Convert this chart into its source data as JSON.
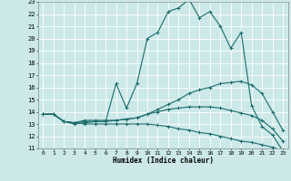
{
  "title": "",
  "xlabel": "Humidex (Indice chaleur)",
  "bg_color": "#cce8e8",
  "grid_color": "#ffffff",
  "line_color": "#1a6b6b",
  "xlim_min": 0,
  "xlim_max": 23,
  "ylim_min": 11,
  "ylim_max": 23,
  "xticks": [
    0,
    1,
    2,
    3,
    4,
    5,
    6,
    7,
    8,
    9,
    10,
    11,
    12,
    13,
    14,
    15,
    16,
    17,
    18,
    19,
    20,
    21,
    22,
    23
  ],
  "yticks": [
    11,
    12,
    13,
    14,
    15,
    16,
    17,
    18,
    19,
    20,
    21,
    22,
    23
  ],
  "series": [
    [
      13.8,
      13.8,
      13.2,
      13.0,
      13.1,
      13.2,
      13.2,
      16.3,
      14.3,
      16.3,
      20.0,
      20.5,
      22.2,
      22.5,
      23.2,
      21.7,
      22.2,
      21.0,
      19.2,
      20.5,
      14.5,
      12.8,
      12.1,
      10.8
    ],
    [
      13.8,
      13.8,
      13.2,
      13.1,
      13.3,
      13.3,
      13.3,
      13.3,
      13.4,
      13.5,
      13.8,
      14.2,
      14.6,
      15.0,
      15.5,
      15.8,
      16.0,
      16.3,
      16.4,
      16.5,
      16.2,
      15.5,
      14.0,
      12.5
    ],
    [
      13.8,
      13.8,
      13.2,
      13.1,
      13.0,
      13.0,
      13.0,
      13.0,
      13.0,
      13.0,
      13.0,
      12.9,
      12.8,
      12.6,
      12.5,
      12.3,
      12.2,
      12.0,
      11.8,
      11.6,
      11.5,
      11.3,
      11.1,
      10.8
    ],
    [
      13.8,
      13.8,
      13.2,
      13.1,
      13.2,
      13.2,
      13.2,
      13.3,
      13.4,
      13.5,
      13.8,
      14.0,
      14.2,
      14.3,
      14.4,
      14.4,
      14.4,
      14.3,
      14.1,
      13.9,
      13.7,
      13.3,
      12.6,
      11.6
    ]
  ]
}
